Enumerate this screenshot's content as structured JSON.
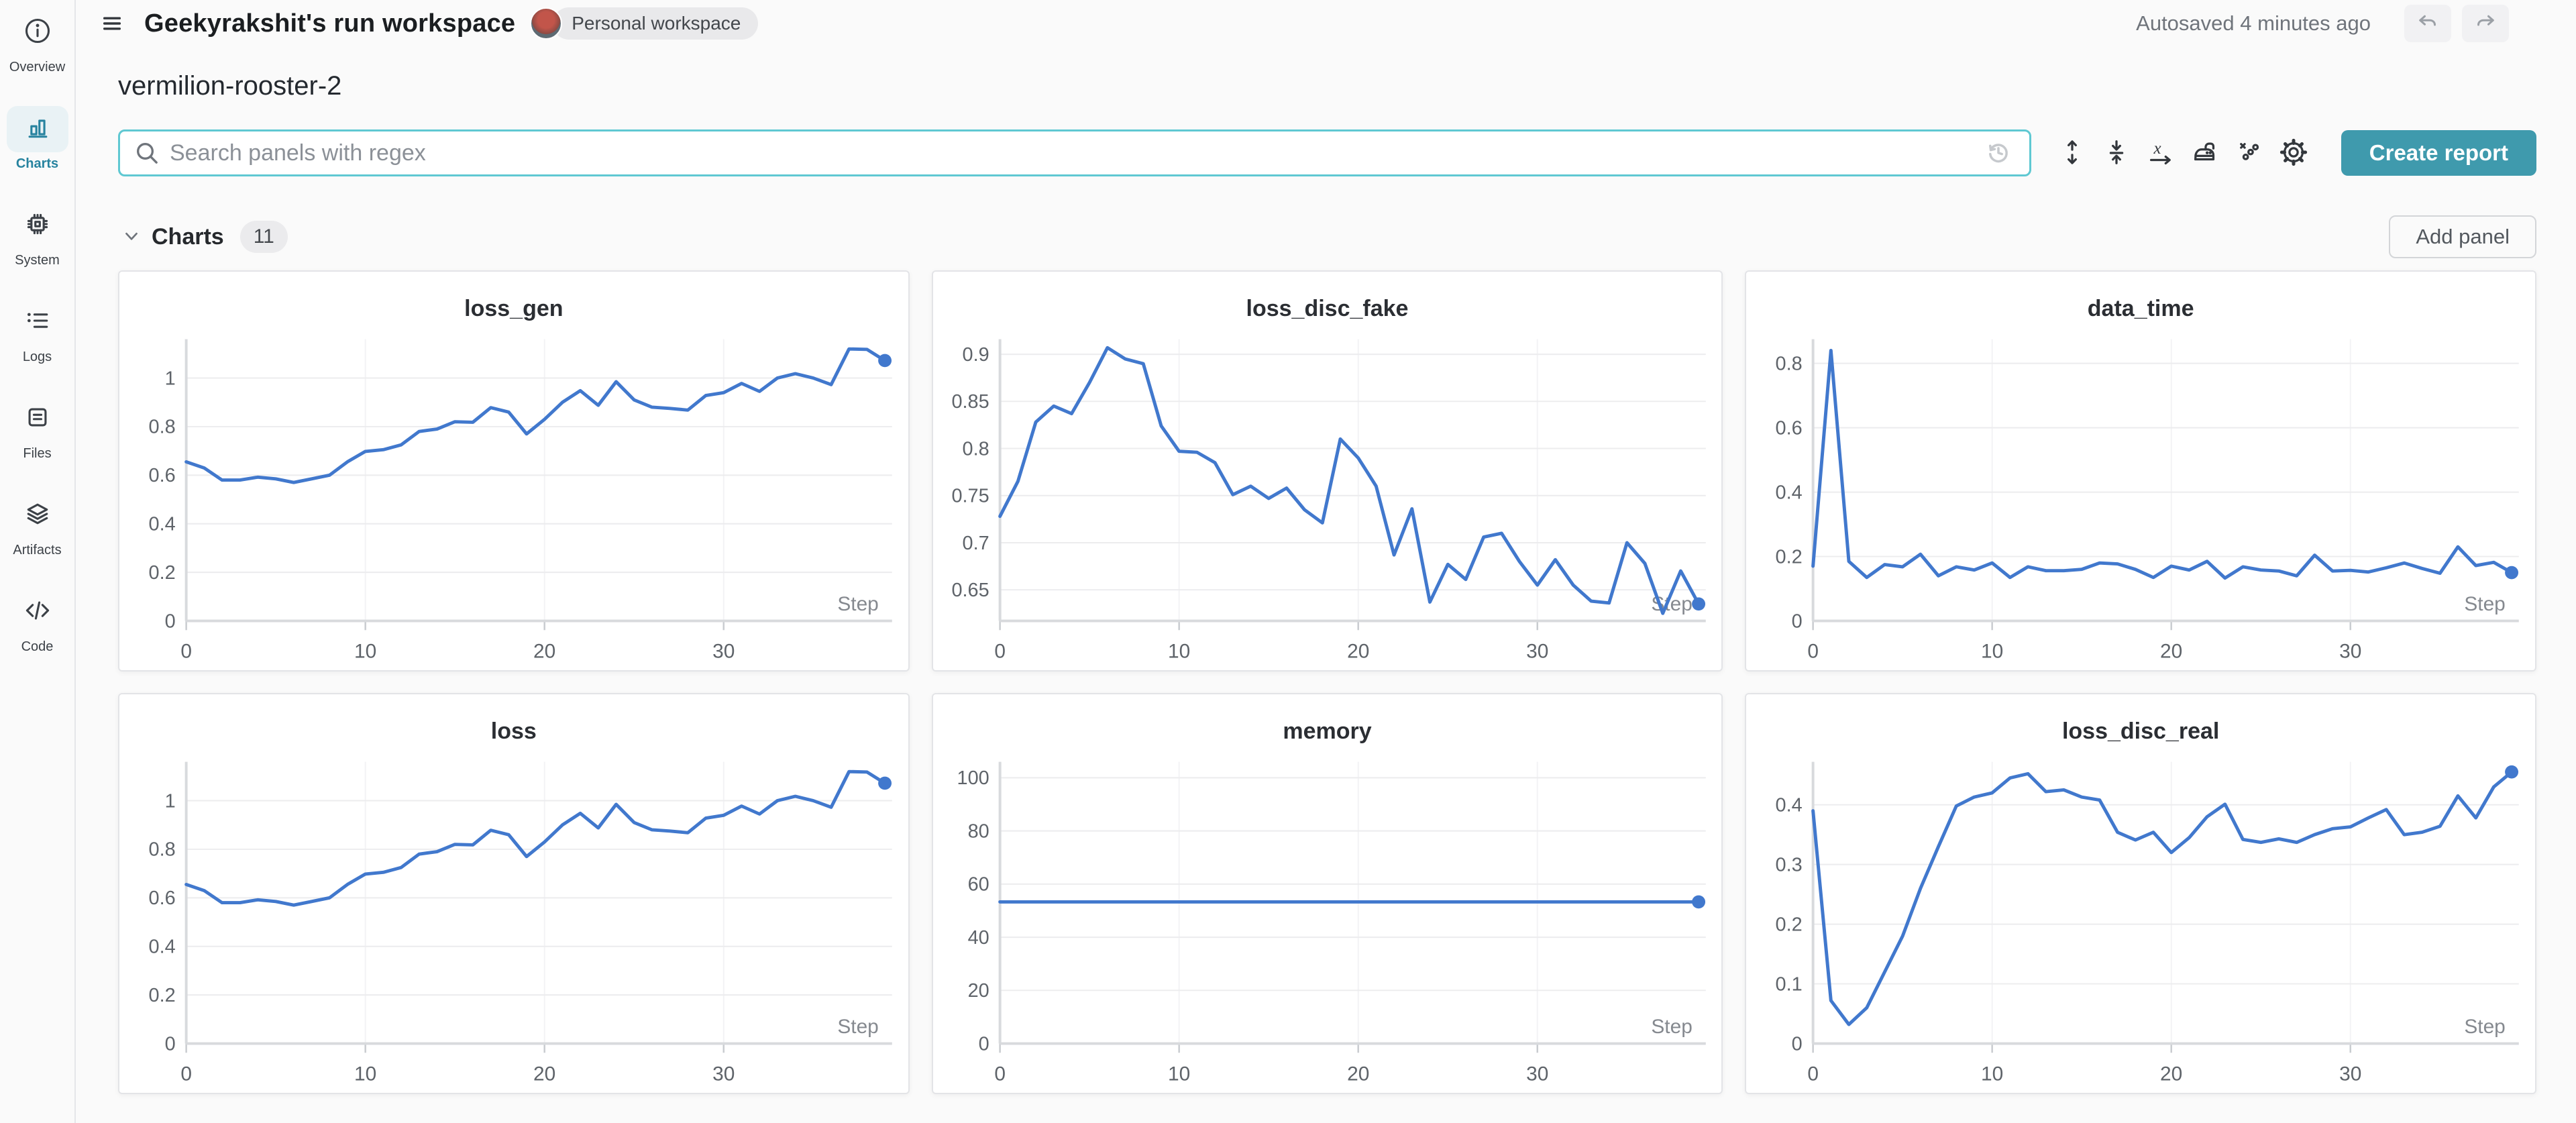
{
  "header": {
    "title": "Geekyrakshit's run workspace",
    "workspace_badge": "Personal workspace",
    "autosave_status": "Autosaved 4 minutes ago"
  },
  "sidebar": {
    "items": [
      {
        "label": "Overview",
        "icon": "info-icon",
        "active": false
      },
      {
        "label": "Charts",
        "icon": "bar-chart-icon",
        "active": true
      },
      {
        "label": "System",
        "icon": "cpu-chip-icon",
        "active": false
      },
      {
        "label": "Logs",
        "icon": "list-icon",
        "active": false
      },
      {
        "label": "Files",
        "icon": "document-icon",
        "active": false
      },
      {
        "label": "Artifacts",
        "icon": "layers-icon",
        "active": false
      },
      {
        "label": "Code",
        "icon": "code-icon",
        "active": false
      }
    ]
  },
  "run": {
    "name": "vermilion-rooster-2"
  },
  "search": {
    "placeholder": "Search panels with regex"
  },
  "toolbar": {
    "buttons": [
      "expand-panels",
      "collapse-panels",
      "x-axis-settings",
      "smoothing-settings",
      "outlier-settings",
      "panel-settings"
    ],
    "create_report_label": "Create report"
  },
  "charts_section": {
    "title": "Charts",
    "count": "11",
    "add_panel_label": "Add panel"
  },
  "colors": {
    "line_blue": "#4178cd",
    "accent_teal": "#3f9aad",
    "search_border": "#5fc8d2",
    "sidebar_active_teal": "#27839f"
  },
  "chart_data": [
    {
      "type": "line",
      "title": "loss_gen",
      "xlabel": "Step",
      "legend": "none",
      "grid": "horizontal",
      "x_ticks": [
        0,
        10,
        20,
        30
      ],
      "xlim": [
        0,
        39.4
      ],
      "y_ticks": [
        0,
        0.2,
        0.4,
        0.6,
        0.8,
        1
      ],
      "ylim": [
        0,
        1.16
      ],
      "values": [
        0.655,
        0.63,
        0.58,
        0.58,
        0.592,
        0.585,
        0.57,
        0.585,
        0.6,
        0.655,
        0.698,
        0.705,
        0.725,
        0.78,
        0.79,
        0.82,
        0.818,
        0.878,
        0.86,
        0.77,
        0.83,
        0.9,
        0.948,
        0.888,
        0.985,
        0.91,
        0.88,
        0.875,
        0.868,
        0.928,
        0.94,
        0.978,
        0.945,
        1.0,
        1.018,
        1.0,
        0.973,
        1.12,
        1.118,
        1.072
      ]
    },
    {
      "type": "line",
      "title": "loss_disc_fake",
      "xlabel": "Step",
      "legend": "none",
      "grid": "horizontal",
      "x_ticks": [
        0,
        10,
        20,
        30
      ],
      "xlim": [
        0,
        39.4
      ],
      "y_ticks": [
        0.65,
        0.7,
        0.75,
        0.8,
        0.85,
        0.9
      ],
      "ylim": [
        0.617,
        0.916
      ],
      "values": [
        0.728,
        0.765,
        0.828,
        0.845,
        0.837,
        0.87,
        0.907,
        0.895,
        0.89,
        0.824,
        0.797,
        0.796,
        0.785,
        0.751,
        0.76,
        0.747,
        0.758,
        0.735,
        0.721,
        0.81,
        0.79,
        0.76,
        0.687,
        0.736,
        0.637,
        0.677,
        0.661,
        0.706,
        0.71,
        0.68,
        0.655,
        0.682,
        0.655,
        0.638,
        0.636,
        0.7,
        0.678,
        0.625,
        0.67,
        0.635
      ]
    },
    {
      "type": "line",
      "title": "data_time",
      "xlabel": "Step",
      "legend": "none",
      "grid": "horizontal",
      "x_ticks": [
        0,
        10,
        20,
        30
      ],
      "xlim": [
        0,
        39.4
      ],
      "y_ticks": [
        0,
        0.2,
        0.4,
        0.6,
        0.8
      ],
      "ylim": [
        0,
        0.875
      ],
      "values": [
        0.17,
        0.84,
        0.185,
        0.135,
        0.175,
        0.168,
        0.207,
        0.14,
        0.168,
        0.158,
        0.18,
        0.135,
        0.168,
        0.156,
        0.156,
        0.16,
        0.18,
        0.177,
        0.16,
        0.135,
        0.17,
        0.158,
        0.185,
        0.133,
        0.168,
        0.158,
        0.155,
        0.14,
        0.204,
        0.155,
        0.157,
        0.152,
        0.165,
        0.18,
        0.163,
        0.148,
        0.23,
        0.172,
        0.182,
        0.15
      ]
    },
    {
      "type": "line",
      "title": "loss",
      "xlabel": "Step",
      "legend": "none",
      "grid": "horizontal",
      "x_ticks": [
        0,
        10,
        20,
        30
      ],
      "xlim": [
        0,
        39.4
      ],
      "y_ticks": [
        0,
        0.2,
        0.4,
        0.6,
        0.8,
        1
      ],
      "ylim": [
        0,
        1.16
      ],
      "values": [
        0.655,
        0.63,
        0.58,
        0.58,
        0.592,
        0.585,
        0.57,
        0.585,
        0.6,
        0.655,
        0.698,
        0.705,
        0.725,
        0.78,
        0.79,
        0.82,
        0.818,
        0.878,
        0.86,
        0.77,
        0.83,
        0.9,
        0.948,
        0.888,
        0.985,
        0.91,
        0.88,
        0.875,
        0.868,
        0.928,
        0.94,
        0.978,
        0.945,
        1.0,
        1.018,
        1.0,
        0.973,
        1.12,
        1.118,
        1.072
      ]
    },
    {
      "type": "line",
      "title": "memory",
      "xlabel": "Step",
      "legend": "none",
      "grid": "horizontal",
      "x_ticks": [
        0,
        10,
        20,
        30
      ],
      "xlim": [
        0,
        39.4
      ],
      "y_ticks": [
        0,
        20,
        40,
        60,
        80,
        100
      ],
      "ylim": [
        0,
        106
      ],
      "values": [
        53.3,
        53.3,
        53.3,
        53.3,
        53.3,
        53.3,
        53.3,
        53.3,
        53.3,
        53.3,
        53.3,
        53.3,
        53.3,
        53.3,
        53.3,
        53.3,
        53.3,
        53.3,
        53.3,
        53.3,
        53.3,
        53.3,
        53.3,
        53.3,
        53.3,
        53.3,
        53.3,
        53.3,
        53.3,
        53.3,
        53.3,
        53.3,
        53.3,
        53.3,
        53.3,
        53.3,
        53.3,
        53.3,
        53.3,
        53.3
      ]
    },
    {
      "type": "line",
      "title": "loss_disc_real",
      "xlabel": "Step",
      "legend": "none",
      "grid": "horizontal",
      "x_ticks": [
        0,
        10,
        20,
        30
      ],
      "xlim": [
        0,
        39.4
      ],
      "y_ticks": [
        0,
        0.1,
        0.2,
        0.3,
        0.4
      ],
      "ylim": [
        0,
        0.472
      ],
      "values": [
        0.39,
        0.072,
        0.032,
        0.06,
        0.12,
        0.18,
        0.26,
        0.33,
        0.398,
        0.413,
        0.42,
        0.445,
        0.452,
        0.422,
        0.425,
        0.413,
        0.408,
        0.354,
        0.341,
        0.354,
        0.32,
        0.345,
        0.38,
        0.401,
        0.342,
        0.337,
        0.343,
        0.337,
        0.35,
        0.36,
        0.363,
        0.378,
        0.392,
        0.35,
        0.354,
        0.364,
        0.415,
        0.378,
        0.43,
        0.455
      ]
    }
  ]
}
